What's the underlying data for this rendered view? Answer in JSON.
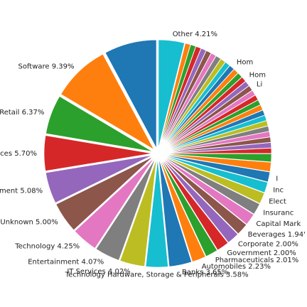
{
  "chart_data": {
    "type": "pie",
    "title": "",
    "exploded": true,
    "start_angle_deg": 90,
    "direction": "clockwise",
    "slices": [
      {
        "label": "Other",
        "value": 4.21,
        "value_label": "4.21%",
        "color": "#17becf"
      },
      {
        "label": "",
        "value": 0.85,
        "value_label": "",
        "color": "#ff7f0e"
      },
      {
        "label": "",
        "value": 0.85,
        "value_label": "",
        "color": "#2ca02c"
      },
      {
        "label": "",
        "value": 0.85,
        "value_label": "",
        "color": "#d62728"
      },
      {
        "label": "",
        "value": 0.85,
        "value_label": "",
        "color": "#9467bd"
      },
      {
        "label": "",
        "value": 0.85,
        "value_label": "",
        "color": "#8c564b"
      },
      {
        "label": "",
        "value": 0.85,
        "value_label": "",
        "color": "#e377c2"
      },
      {
        "label": "",
        "value": 0.85,
        "value_label": "",
        "color": "#7f7f7f"
      },
      {
        "label": "",
        "value": 0.85,
        "value_label": "",
        "color": "#bcbd22"
      },
      {
        "label": "",
        "value": 0.85,
        "value_label": "",
        "color": "#17becf"
      },
      {
        "label": "Hom",
        "value": 0.85,
        "value_label": "",
        "color": "#1f77b4"
      },
      {
        "label": "",
        "value": 0.85,
        "value_label": "",
        "color": "#ff7f0e"
      },
      {
        "label": "",
        "value": 0.85,
        "value_label": "",
        "color": "#2ca02c"
      },
      {
        "label": "Hom",
        "value": 0.85,
        "value_label": "",
        "color": "#d62728"
      },
      {
        "label": "",
        "value": 0.85,
        "value_label": "",
        "color": "#9467bd"
      },
      {
        "label": "Li",
        "value": 0.85,
        "value_label": "",
        "color": "#8c564b"
      },
      {
        "label": "",
        "value": 0.85,
        "value_label": "",
        "color": "#e377c2"
      },
      {
        "label": "",
        "value": 0.85,
        "value_label": "",
        "color": "#d62728"
      },
      {
        "label": "",
        "value": 0.85,
        "value_label": "",
        "color": "#2ca02c"
      },
      {
        "label": "",
        "value": 0.85,
        "value_label": "",
        "color": "#ff7f0e"
      },
      {
        "label": "",
        "value": 0.85,
        "value_label": "",
        "color": "#1f77b4"
      },
      {
        "label": "",
        "value": 0.85,
        "value_label": "",
        "color": "#17becf"
      },
      {
        "label": "",
        "value": 0.85,
        "value_label": "",
        "color": "#bcbd22"
      },
      {
        "label": "",
        "value": 0.85,
        "value_label": "",
        "color": "#7f7f7f"
      },
      {
        "label": "",
        "value": 0.85,
        "value_label": "",
        "color": "#e377c2"
      },
      {
        "label": "",
        "value": 0.85,
        "value_label": "",
        "color": "#8c564b"
      },
      {
        "label": "",
        "value": 0.85,
        "value_label": "",
        "color": "#9467bd"
      },
      {
        "label": "",
        "value": 0.85,
        "value_label": "",
        "color": "#d62728"
      },
      {
        "label": "",
        "value": 1.3,
        "value_label": "",
        "color": "#2ca02c"
      },
      {
        "label": "",
        "value": 1.5,
        "value_label": "",
        "color": "#ff7f0e"
      },
      {
        "label": "I",
        "value": 1.6,
        "value_label": "",
        "color": "#1f77b4"
      },
      {
        "label": "Inc",
        "value": 1.7,
        "value_label": "",
        "color": "#17becf"
      },
      {
        "label": "Elect",
        "value": 1.8,
        "value_label": "",
        "color": "#bcbd22"
      },
      {
        "label": "Insuranc",
        "value": 1.85,
        "value_label": "",
        "color": "#7f7f7f"
      },
      {
        "label": "Capital Mark",
        "value": 1.9,
        "value_label": "",
        "color": "#e377c2"
      },
      {
        "label": "Beverages",
        "value": 1.94,
        "value_label": "1.94'",
        "color": "#8c564b"
      },
      {
        "label": "Corporate",
        "value": 2.0,
        "value_label": "2.00%",
        "color": "#9467bd"
      },
      {
        "label": "Government",
        "value": 2.0,
        "value_label": "2.00%",
        "color": "#d62728"
      },
      {
        "label": "Pharmaceuticals",
        "value": 2.01,
        "value_label": "2.01%",
        "color": "#2ca02c"
      },
      {
        "label": "Automobiles",
        "value": 2.23,
        "value_label": "2.23%",
        "color": "#ff7f0e"
      },
      {
        "label": "Banks",
        "value": 3.65,
        "value_label": "3.65%",
        "color": "#1f77b4"
      },
      {
        "label": "Technology Hardware, Storage & Peripherals",
        "value": 3.58,
        "value_label": "3.58%",
        "color": "#17becf"
      },
      {
        "label": "IT Services",
        "value": 4.02,
        "value_label": "4.02%",
        "color": "#bcbd22"
      },
      {
        "label": "Entertainment",
        "value": 4.07,
        "value_label": "4.07%",
        "color": "#7f7f7f"
      },
      {
        "label": "Technology",
        "value": 4.25,
        "value_label": "4.25%",
        "color": "#e377c2"
      },
      {
        "label": "Unknown",
        "value": 5.0,
        "value_label": "5.00%",
        "color": "#8c564b"
      },
      {
        "label": "Investment",
        "value": 5.08,
        "value_label": "5.08%",
        "color": "#9467bd"
      },
      {
        "label": "Services",
        "value": 5.7,
        "value_label": "5.70%",
        "color": "#d62728"
      },
      {
        "label": "Marketing Retail",
        "value": 6.37,
        "value_label": "6.37%",
        "color": "#2ca02c"
      },
      {
        "label": "Software",
        "value": 9.39,
        "value_label": "9.39%",
        "color": "#ff7f0e"
      },
      {
        "label": "",
        "value": 8.5,
        "value_label": "",
        "color": "#1f77b4"
      }
    ]
  }
}
